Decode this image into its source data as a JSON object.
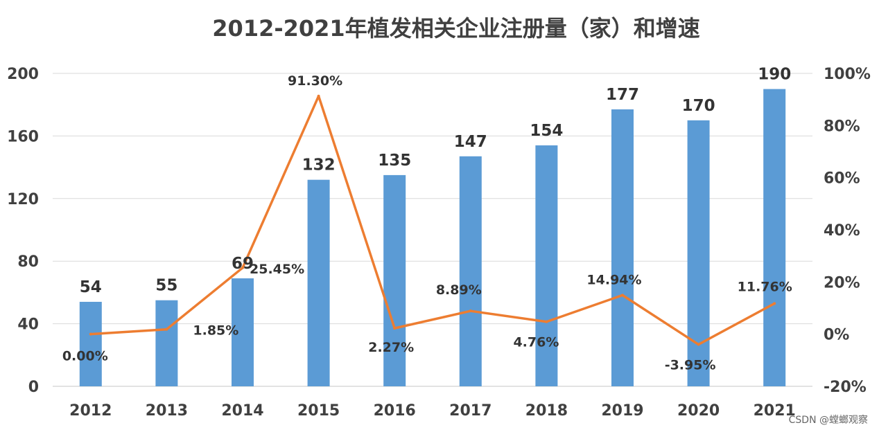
{
  "chart_data": {
    "type": "bar",
    "title": "2012-2021年植发相关企业注册量（家）和增速",
    "categories": [
      "2012",
      "2013",
      "2014",
      "2015",
      "2016",
      "2017",
      "2018",
      "2019",
      "2020",
      "2021"
    ],
    "series": [
      {
        "type": "bar",
        "axis": "left",
        "color": "#5b9bd5",
        "values": [
          54,
          55,
          69,
          132,
          135,
          147,
          154,
          177,
          170,
          190
        ],
        "labels": [
          "54",
          "55",
          "69",
          "132",
          "135",
          "147",
          "154",
          "177",
          "170",
          "190"
        ]
      },
      {
        "type": "line",
        "axis": "right",
        "color": "#ed7d31",
        "values": [
          0.0,
          1.85,
          25.45,
          91.3,
          2.27,
          8.89,
          4.76,
          14.94,
          -3.95,
          11.76
        ],
        "labels": [
          "0.00%",
          "1.85%",
          "25.45%",
          "91.30%",
          "2.27%",
          "8.89%",
          "4.76%",
          "14.94%",
          "-3.95%",
          "11.76%"
        ]
      }
    ],
    "y_left": {
      "ylim": [
        0,
        200
      ],
      "ticks": [
        "0",
        "40",
        "80",
        "120",
        "160",
        "200"
      ]
    },
    "y_right": {
      "ylim": [
        -20,
        100
      ],
      "ticks": [
        "-20%",
        "0%",
        "20%",
        "40%",
        "60%",
        "80%",
        "100%"
      ]
    },
    "grid": true,
    "legend": "none"
  },
  "watermark": "CSDN @螳螂观察"
}
